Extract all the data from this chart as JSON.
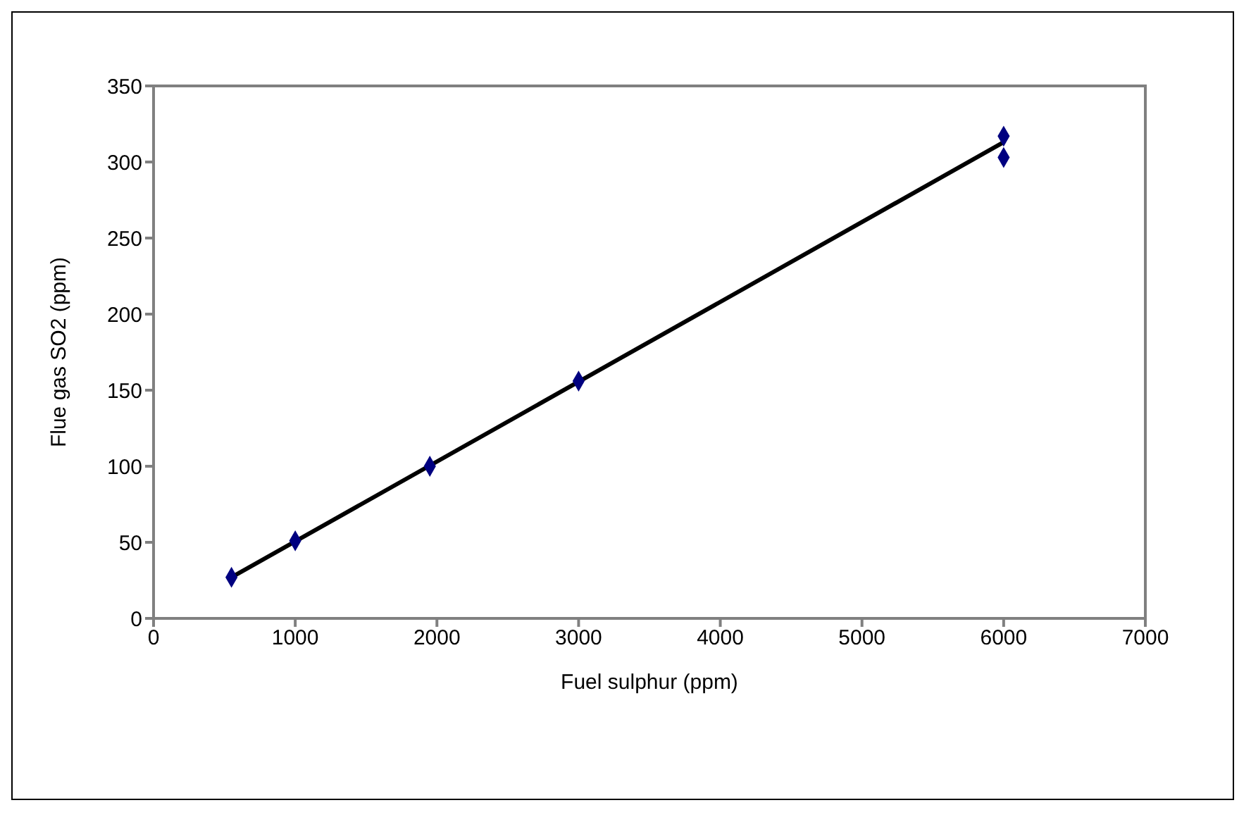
{
  "chart_data": {
    "type": "scatter",
    "xlabel": "Fuel sulphur (ppm)",
    "ylabel": "Flue gas SO2 (ppm)",
    "series": [
      {
        "type": "scatter",
        "color": "#000080",
        "marker": "diamond",
        "x": [
          550,
          1000,
          1950,
          3000,
          6000,
          6000
        ],
        "values": [
          27,
          51,
          100,
          156,
          303,
          317
        ]
      },
      {
        "type": "line",
        "color": "#000000",
        "marker": "none",
        "line_style": "solid",
        "x": [
          550,
          6000
        ],
        "values": [
          27,
          313
        ]
      }
    ],
    "xlim": [
      0,
      7000
    ],
    "xticks": [
      0,
      1000,
      2000,
      3000,
      4000,
      5000,
      6000,
      7000
    ],
    "ylim": [
      0,
      350
    ],
    "yticks": [
      0,
      50,
      100,
      150,
      200,
      250,
      300,
      350
    ],
    "grid": false,
    "legend": false
  }
}
